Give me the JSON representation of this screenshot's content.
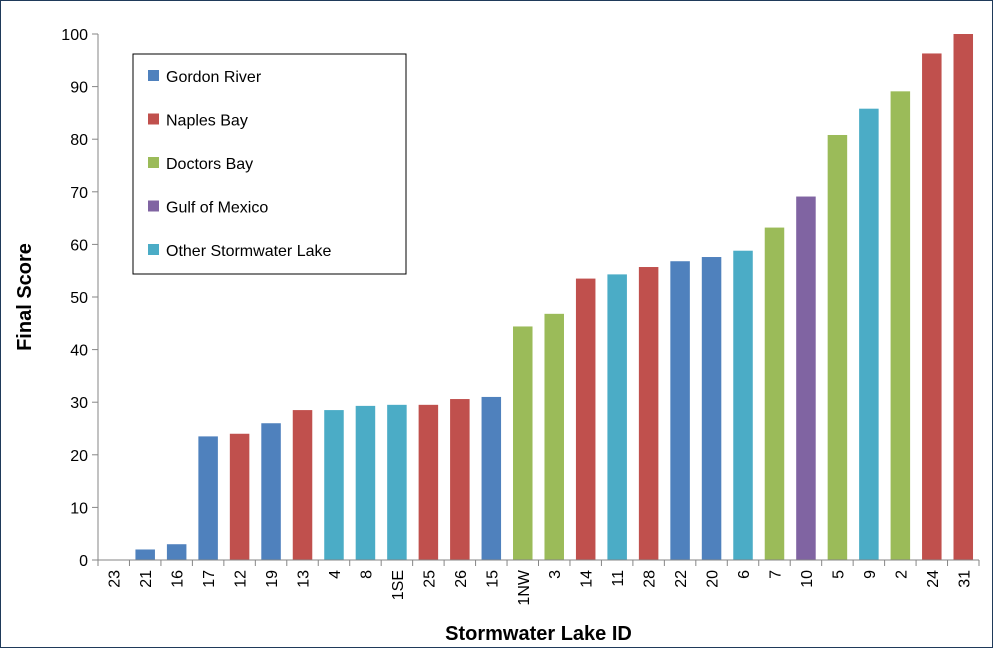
{
  "chart_data": {
    "type": "bar",
    "title": "",
    "xlabel": "Stormwater Lake ID",
    "ylabel": "Final Score",
    "ylim": [
      0,
      100
    ],
    "yticks": [
      0,
      10,
      20,
      30,
      40,
      50,
      60,
      70,
      80,
      90,
      100
    ],
    "grid": false,
    "legend_position": "top-left",
    "categories": [
      "23",
      "21",
      "16",
      "17",
      "12",
      "19",
      "13",
      "4",
      "8",
      "1SE",
      "25",
      "26",
      "15",
      "1NW",
      "3",
      "14",
      "11",
      "28",
      "22",
      "20",
      "6",
      "7",
      "10",
      "5",
      "9",
      "2",
      "24",
      "31"
    ],
    "values": [
      0,
      2,
      3,
      23.5,
      24,
      26,
      28.5,
      28.5,
      29.3,
      29.5,
      29.5,
      30.6,
      31,
      44.4,
      46.8,
      53.5,
      54.3,
      55.7,
      56.8,
      57.6,
      58.8,
      63.2,
      69.1,
      80.8,
      85.8,
      89.1,
      96.3,
      100
    ],
    "groups": [
      "Gordon River",
      "Gordon River",
      "Gordon River",
      "Gordon River",
      "Naples Bay",
      "Gordon River",
      "Naples Bay",
      "Other Stormwater Lake",
      "Other Stormwater Lake",
      "Other Stormwater Lake",
      "Naples Bay",
      "Naples Bay",
      "Gordon River",
      "Doctors Bay",
      "Doctors Bay",
      "Naples Bay",
      "Other Stormwater Lake",
      "Naples Bay",
      "Gordon River",
      "Gordon River",
      "Other Stormwater Lake",
      "Doctors Bay",
      "Gulf of Mexico",
      "Doctors Bay",
      "Other Stormwater Lake",
      "Doctors Bay",
      "Naples Bay",
      "Naples Bay"
    ],
    "legend": [
      {
        "name": "Gordon River",
        "color": "#4f81bd"
      },
      {
        "name": "Naples Bay",
        "color": "#c0504d"
      },
      {
        "name": "Doctors Bay",
        "color": "#9bbb59"
      },
      {
        "name": "Gulf of Mexico",
        "color": "#8064a2"
      },
      {
        "name": "Other Stormwater Lake",
        "color": "#4bacc6"
      }
    ]
  }
}
